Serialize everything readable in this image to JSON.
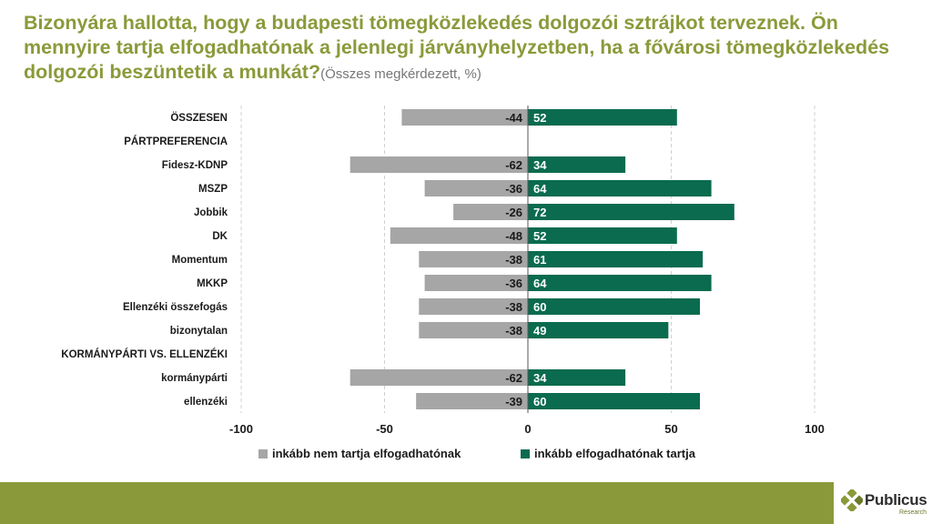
{
  "title": {
    "main": "Bizonyára hallotta, hogy a budapesti tömegközlekedés dolgozói sztrájkot terveznek. Ön mennyire tartja elfogadhatónak a jelenlegi járványhelyzetben, ha a fővárosi tömegközlekedés dolgozói beszüntetik a munkát?",
    "subtitle": "(Összes megkérdezett, %)"
  },
  "logo": {
    "name": "Publicus",
    "sub": "Research"
  },
  "colors": {
    "negative": "#a6a6a6",
    "positive": "#0a6b4e",
    "accent": "#8a9a3a"
  },
  "chart_data": {
    "type": "bar",
    "orientation": "horizontal",
    "stacked": "diverging",
    "xlim": [
      -100,
      100
    ],
    "xticks": [
      "-100",
      "-50",
      "0",
      "50",
      "100"
    ],
    "tick_values": [
      -100,
      -50,
      0,
      50,
      100
    ],
    "grid": true,
    "legend_position": "bottom",
    "categories": [
      "ÖSSZESEN",
      "PÁRTPREFERENCIA",
      "Fidesz-KDNP",
      "MSZP",
      "Jobbik",
      "DK",
      "Momentum",
      "MKKP",
      "Ellenzéki összefogás",
      "bizonytalan",
      "KORMÁNYPÁRTI VS. ELLENZÉKI",
      "kormánypárti",
      "ellenzéki"
    ],
    "series": [
      {
        "name": "inkább nem tartja elfogadhatónak",
        "values": [
          -44,
          null,
          -62,
          -36,
          -26,
          -48,
          -38,
          -36,
          -38,
          -38,
          null,
          -62,
          -39
        ]
      },
      {
        "name": "inkább elfogadhatónak tartja",
        "values": [
          52,
          null,
          34,
          64,
          72,
          52,
          61,
          64,
          60,
          49,
          null,
          34,
          60
        ]
      }
    ],
    "labels": [
      {
        "neg": "-44",
        "pos": "52"
      },
      {
        "neg": "",
        "pos": ""
      },
      {
        "neg": "-62",
        "pos": "34"
      },
      {
        "neg": "-36",
        "pos": "64"
      },
      {
        "neg": "-26",
        "pos": "72"
      },
      {
        "neg": "-48",
        "pos": "52"
      },
      {
        "neg": "-38",
        "pos": "61"
      },
      {
        "neg": "-36",
        "pos": "64"
      },
      {
        "neg": "-38",
        "pos": "60"
      },
      {
        "neg": "-38",
        "pos": "49"
      },
      {
        "neg": "",
        "pos": ""
      },
      {
        "neg": "-62",
        "pos": "34"
      },
      {
        "neg": "-39",
        "pos": "60"
      }
    ]
  }
}
